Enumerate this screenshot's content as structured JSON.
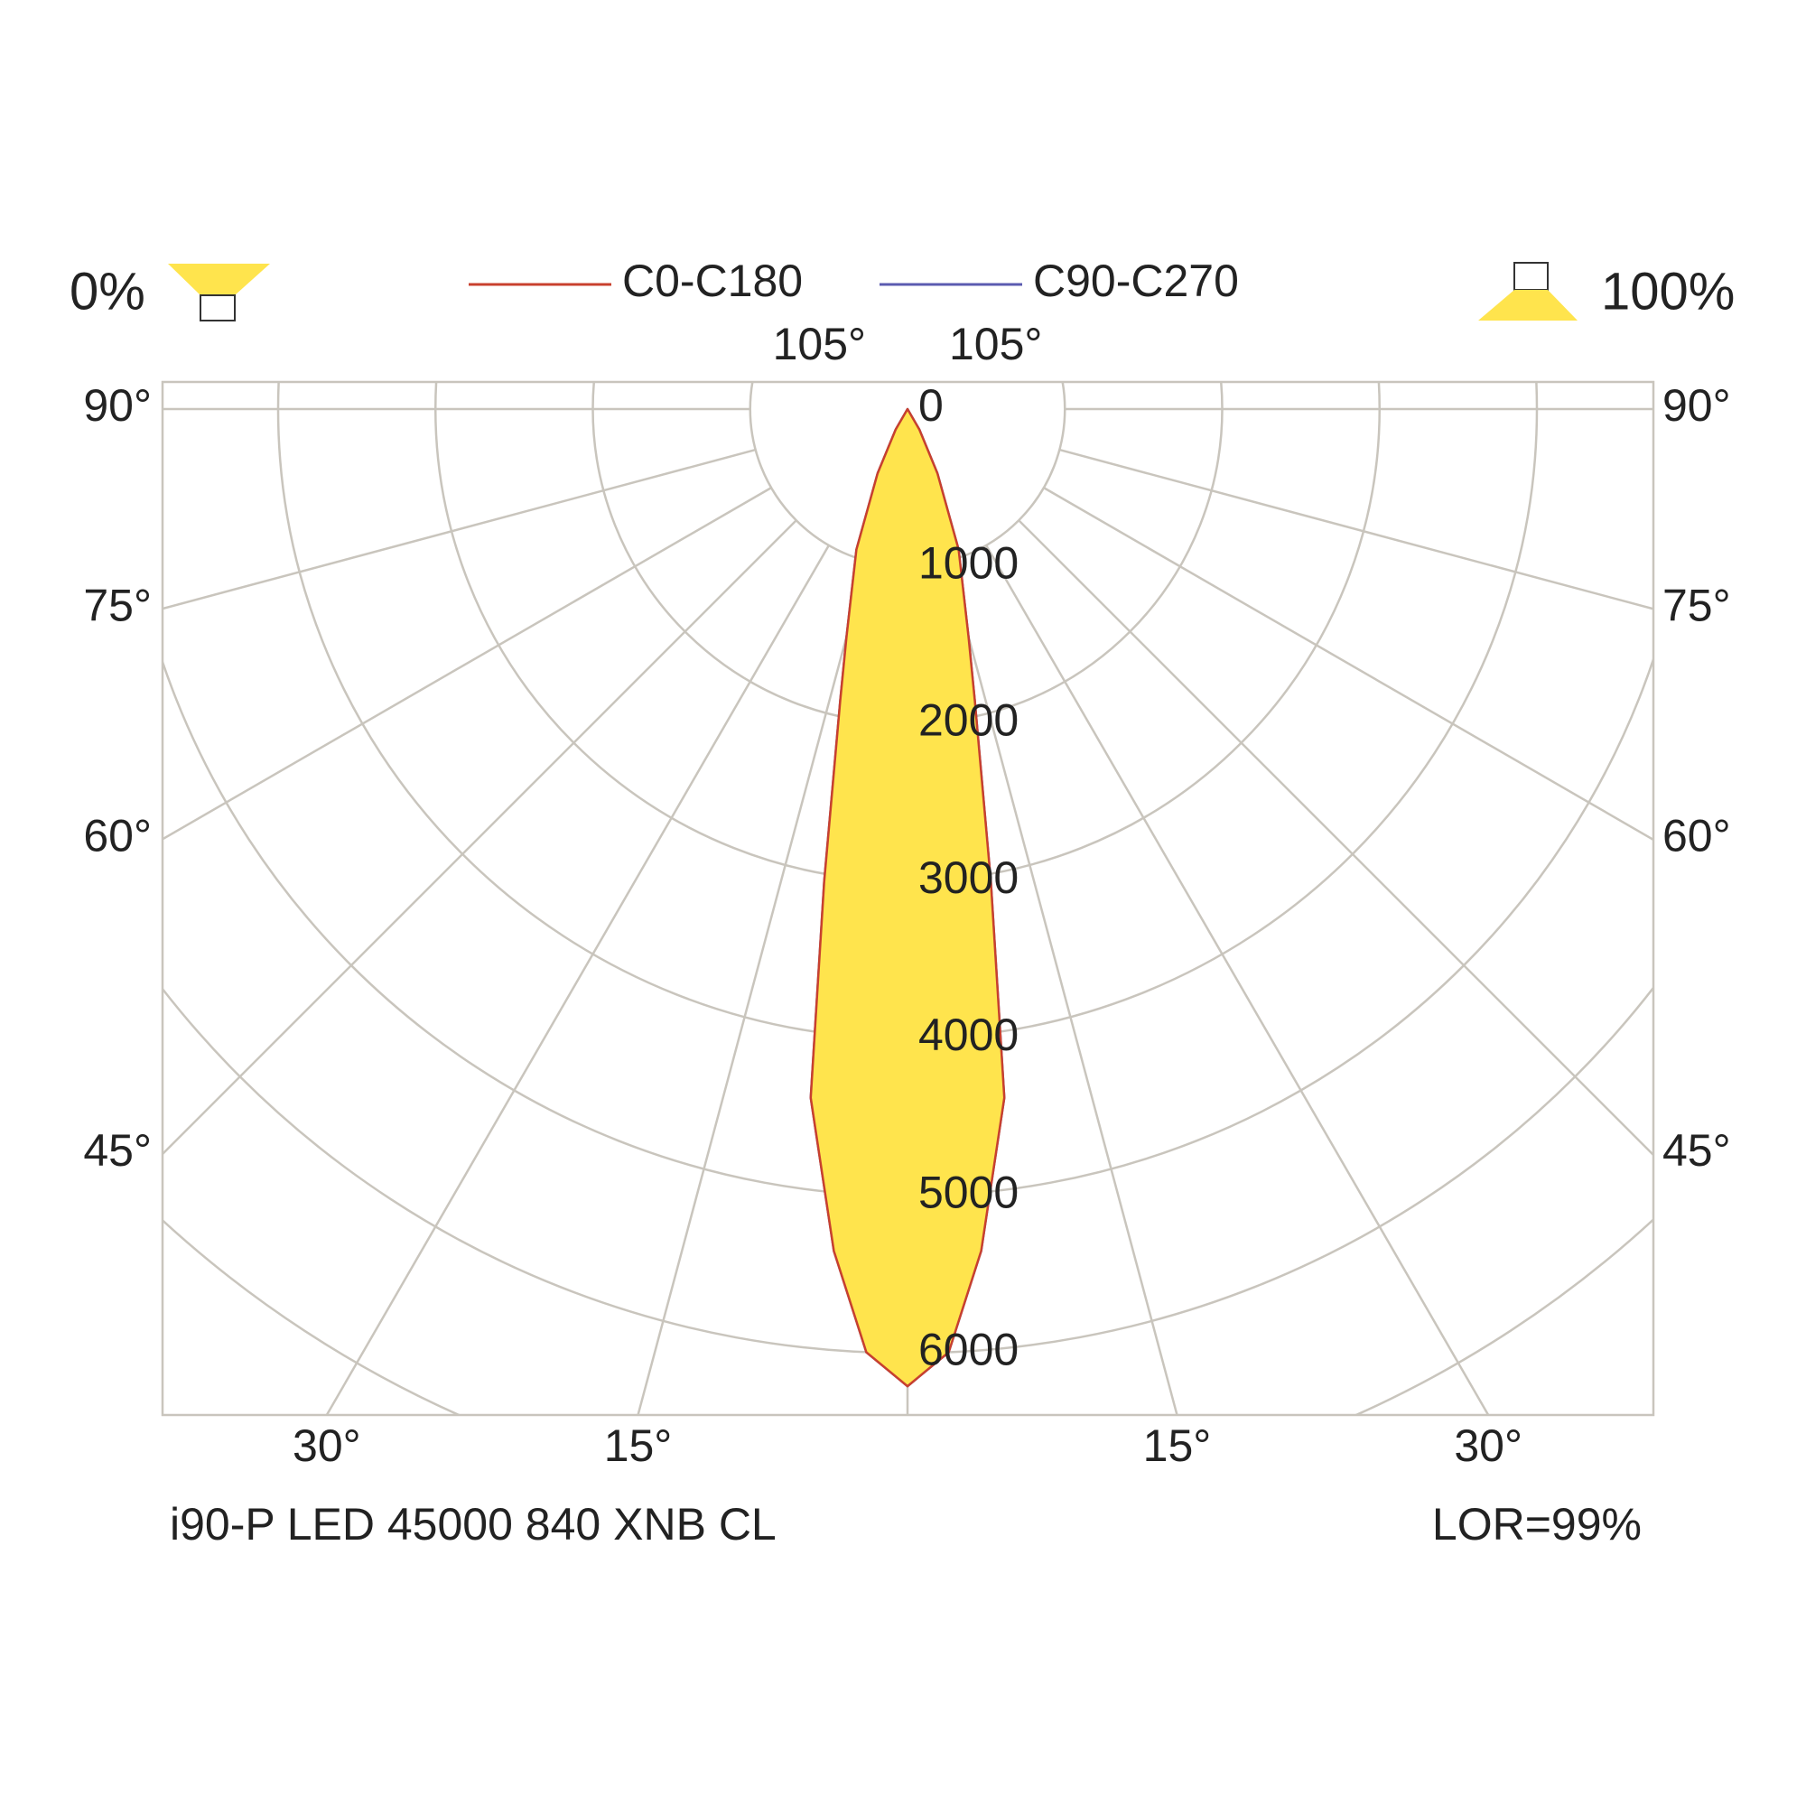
{
  "chart_data": {
    "type": "polar",
    "title": "i90-P LED 45000 840 XNB CL",
    "annotation": "LOR=99%",
    "downward_label": "0%",
    "upward_label": "100%",
    "x": [
      -40,
      -30,
      -25,
      -20,
      -15,
      -13,
      -10,
      -8,
      -5,
      -2.5,
      0,
      2.5,
      5,
      8,
      10,
      13,
      15,
      20,
      25,
      30,
      40
    ],
    "series": [
      {
        "name": "C90-C270",
        "color": "#5b5bb0",
        "values": [
          0,
          150,
          450,
          950,
          1500,
          1900,
          3050,
          4420,
          5370,
          6000,
          6210,
          6000,
          5370,
          4420,
          3050,
          1900,
          1500,
          950,
          450,
          150,
          0
        ]
      },
      {
        "name": "C0-C180",
        "color": "#c8402e",
        "values": [
          0,
          150,
          450,
          950,
          1500,
          1900,
          3050,
          4420,
          5370,
          6000,
          6210,
          6000,
          5370,
          4420,
          3050,
          1900,
          1500,
          950,
          450,
          150,
          0
        ]
      }
    ],
    "fill": "#ffe44d",
    "rlim": [
      0,
      8000
    ],
    "rticks": [
      0,
      1000,
      2000,
      3000,
      4000,
      5000,
      6000
    ],
    "angle_ticks": [
      {
        "value": 15,
        "label": "15°"
      },
      {
        "value": 30,
        "label": "30°"
      },
      {
        "value": 45,
        "label": "45°"
      },
      {
        "value": 60,
        "label": "60°"
      },
      {
        "value": 75,
        "label": "75°"
      },
      {
        "value": 90,
        "label": "90°"
      },
      {
        "value": 105,
        "label": "105°"
      }
    ],
    "grid": true
  }
}
